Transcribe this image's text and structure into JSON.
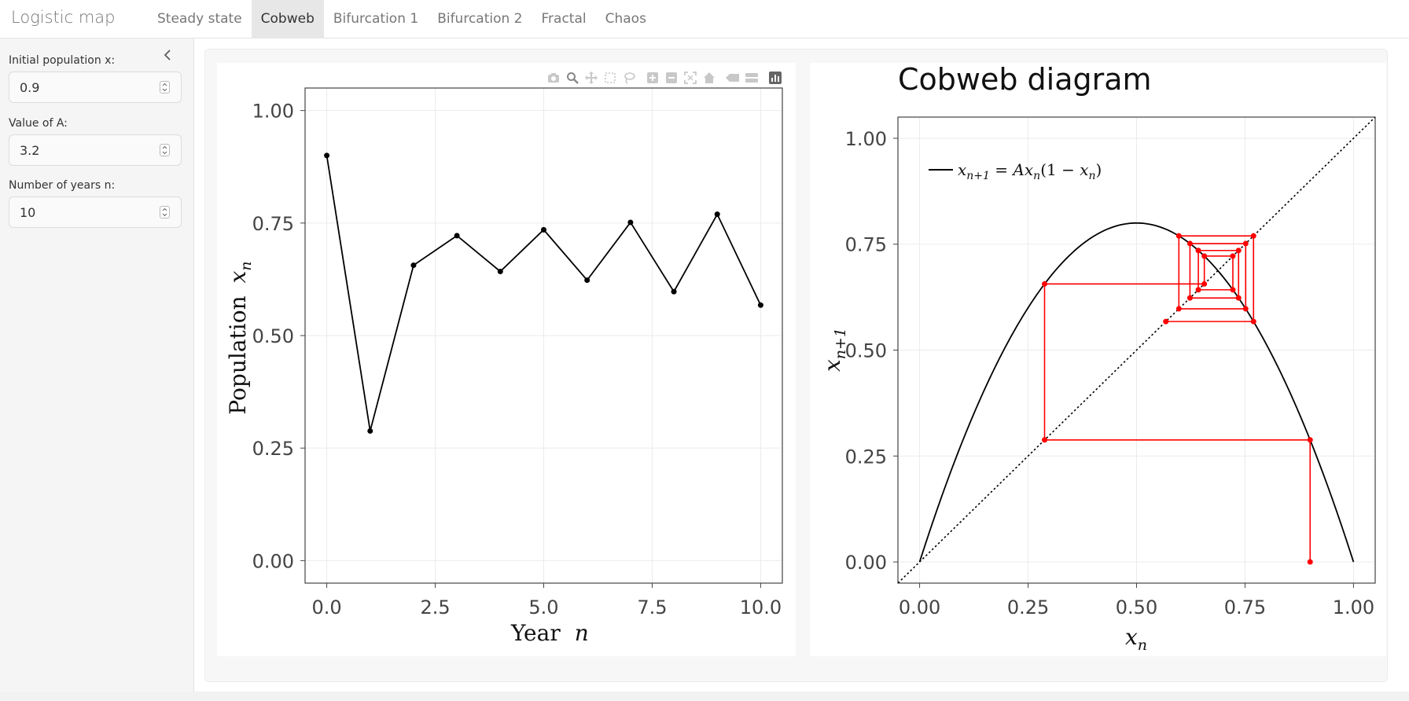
{
  "app": {
    "title": "Logistic map",
    "tabs": [
      {
        "label": "Steady state",
        "active": false
      },
      {
        "label": "Cobweb",
        "active": true
      },
      {
        "label": "Bifurcation 1",
        "active": false
      },
      {
        "label": "Bifurcation 2",
        "active": false
      },
      {
        "label": "Fractal",
        "active": false
      },
      {
        "label": "Chaos",
        "active": false
      }
    ]
  },
  "sidebar": {
    "inputs": [
      {
        "label": "Initial population x:",
        "value": "0.9"
      },
      {
        "label": "Value of A:",
        "value": "3.2"
      },
      {
        "label": "Number of years n:",
        "value": "10"
      }
    ]
  },
  "modebar": {
    "icons": [
      "camera-icon",
      "zoom-icon",
      "pan-icon",
      "box-select-icon",
      "lasso-icon",
      "zoom-in-icon",
      "zoom-out-icon",
      "autoscale-icon",
      "reset-axes-icon",
      "spike-lines-icon",
      "compare-hover-icon",
      "plotly-logo-icon"
    ]
  },
  "chart_data": [
    {
      "type": "line",
      "title": "",
      "xlabel": "Year",
      "xlabel_math": "n",
      "ylabel": "Population",
      "ylabel_math": "x",
      "ylabel_math_sub": "n",
      "x": [
        0,
        1,
        2,
        3,
        4,
        5,
        6,
        7,
        8,
        9,
        10
      ],
      "y": [
        0.9,
        0.288,
        0.6562,
        0.722,
        0.6424,
        0.7351,
        0.6231,
        0.7515,
        0.5976,
        0.7695,
        0.5676
      ],
      "xlim": [
        -0.5,
        10.5
      ],
      "ylim": [
        -0.05,
        1.05
      ],
      "xticks": [
        0,
        2.5,
        5,
        7.5,
        10
      ],
      "xtick_labels": [
        "0.0",
        "2.5",
        "5.0",
        "7.5",
        "10.0"
      ],
      "yticks": [
        0,
        0.25,
        0.5,
        0.75,
        1
      ],
      "ytick_labels": [
        "0.00",
        "0.25",
        "0.50",
        "0.75",
        "1.00"
      ],
      "grid": true,
      "color": "#000000"
    },
    {
      "type": "line",
      "title": "Cobweb diagram",
      "xlabel_math": "x",
      "xlabel_math_sub": "n",
      "ylabel_math": "x",
      "ylabel_math_sub": "n+1",
      "legend": {
        "entry": "x_{n+1} = Ax_n(1 − x_n)",
        "placement": "top-left"
      },
      "A": 3.2,
      "x0": 0.9,
      "years": 10,
      "curve_color": "#000000",
      "cobweb_color": "#ff0000",
      "xlim": [
        -0.05,
        1.05
      ],
      "ylim": [
        -0.05,
        1.05
      ],
      "xticks": [
        0,
        0.25,
        0.5,
        0.75,
        1
      ],
      "xtick_labels": [
        "0.00",
        "0.25",
        "0.50",
        "0.75",
        "1.00"
      ],
      "yticks": [
        0,
        0.25,
        0.5,
        0.75,
        1
      ],
      "ytick_labels": [
        "0.00",
        "0.25",
        "0.50",
        "0.75",
        "1.00"
      ],
      "grid": true
    }
  ]
}
